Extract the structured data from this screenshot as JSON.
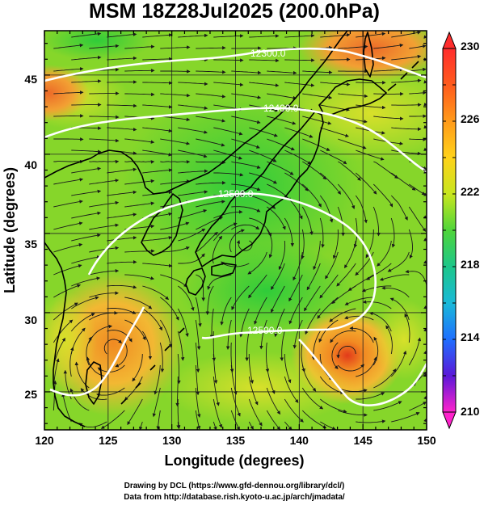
{
  "title": "MSM 18Z28Jul2025 (200.0hPa)",
  "map": {
    "xlabel": "Longitude (degrees)",
    "ylabel": "Latitude  (degrees)",
    "lon_range": [
      120,
      150
    ],
    "lat_range": [
      22.6,
      47.8
    ],
    "lon_ticks": [
      "120",
      "125",
      "130",
      "135",
      "140",
      "145",
      "150"
    ],
    "lat_ticks": [
      "25",
      "30",
      "35",
      "40",
      "45"
    ],
    "contours": [
      {
        "label": "12300.0"
      },
      {
        "label": "12400.0"
      },
      {
        "label": "12500.0"
      },
      {
        "label": "12500.0"
      }
    ],
    "colors": {
      "cool_green": "#33cc33",
      "mid_green": "#7ed321",
      "yellow_green": "#c8e61e",
      "orange": "#f0a020",
      "red_orange": "#e8541c",
      "contour": "#ffffff",
      "streamline": "#1a1a1a",
      "coastline": "#000000"
    }
  },
  "colorbar": {
    "labels": [
      "230",
      "226",
      "222",
      "218",
      "214",
      "210"
    ],
    "max": 230,
    "min": 210,
    "colors": [
      "#ff2d2d",
      "#ff8a1c",
      "#ffc21a",
      "#c8e61e",
      "#6ad52a",
      "#22c75a",
      "#19b9c8",
      "#1f6fff",
      "#3a18d8",
      "#b018d8",
      "#ff22cc"
    ]
  },
  "credits": {
    "line1": "Drawing by DCL (https://www.gfd-dennou.org/library/dcl/)",
    "line2": "Data from http://database.rish.kyoto-u.ac.jp/arch/jmadata/"
  }
}
